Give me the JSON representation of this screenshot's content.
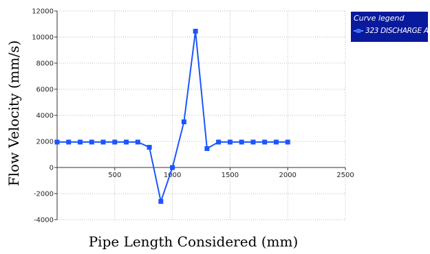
{
  "chart_data": {
    "type": "line",
    "title": "",
    "xlabel": "Pipe Length Considered (mm)",
    "ylabel": "Flow Velocity (mm/s)",
    "xlim": [
      0,
      2500
    ],
    "ylim": [
      -4000,
      12000
    ],
    "x_ticks": [
      500,
      1000,
      1500,
      2000,
      2500
    ],
    "y_ticks": [
      -4000,
      -2000,
      0,
      2000,
      4000,
      6000,
      8000,
      10000,
      12000
    ],
    "x_tick_labels": [
      "500",
      "1000",
      "1500",
      "2000",
      "2500"
    ],
    "y_tick_labels": [
      "-4000",
      "-2000",
      "0",
      "2000",
      "4000",
      "6000",
      "8000",
      "10000",
      "12000"
    ],
    "grid": true,
    "legend": {
      "title": "Curve legend",
      "placement": "top-right, outside plot"
    },
    "series": [
      {
        "name": "323 DISCHARGE A",
        "color": "#1a55ff",
        "marker": "square",
        "x": [
          0,
          100,
          200,
          300,
          400,
          500,
          600,
          700,
          800,
          900,
          1000,
          1100,
          1200,
          1300,
          1400,
          1500,
          1600,
          1700,
          1800,
          1900,
          2000
        ],
        "y": [
          1950,
          1950,
          1950,
          1950,
          1950,
          1950,
          1950,
          1950,
          1550,
          -2600,
          0,
          3500,
          10450,
          1450,
          1950,
          1950,
          1950,
          1950,
          1950,
          1950,
          1950
        ]
      }
    ]
  }
}
